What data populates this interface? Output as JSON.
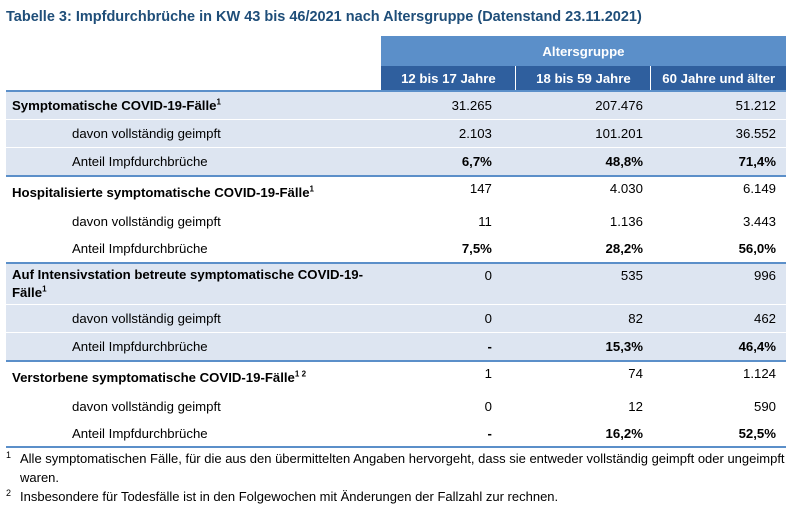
{
  "title": "Tabelle 3: Impfdurchbrüche in KW 43 bis 46/2021 nach Altersgruppe (Datenstand 23.11.2021)",
  "group_header": "Altersgruppe",
  "columns": [
    "12 bis 17 Jahre",
    "18 bis 59 Jahre",
    "60 Jahre und älter"
  ],
  "sections": [
    {
      "label": "Symptomatische COVID-19-Fälle",
      "sup": "1",
      "values": [
        "31.265",
        "207.476",
        "51.212"
      ],
      "vaccinated_label": "davon vollständig geimpft",
      "vaccinated": [
        "2.103",
        "101.201",
        "36.552"
      ],
      "share_label": "Anteil Impfdurchbrüche",
      "share": [
        "6,7%",
        "48,8%",
        "71,4%"
      ]
    },
    {
      "label": "Hospitalisierte symptomatische COVID-19-Fälle",
      "sup": "1",
      "values": [
        "147",
        "4.030",
        "6.149"
      ],
      "vaccinated_label": "davon vollständig geimpft",
      "vaccinated": [
        "11",
        "1.136",
        "3.443"
      ],
      "share_label": "Anteil Impfdurchbrüche",
      "share": [
        "7,5%",
        "28,2%",
        "56,0%"
      ]
    },
    {
      "label": "Auf Intensivstation betreute symptomatische COVID-19-Fälle",
      "sup": "1",
      "values": [
        "0",
        "535",
        "996"
      ],
      "vaccinated_label": "davon vollständig geimpft",
      "vaccinated": [
        "0",
        "82",
        "462"
      ],
      "share_label": "Anteil Impfdurchbrüche",
      "share": [
        "-",
        "15,3%",
        "46,4%"
      ]
    },
    {
      "label": "Verstorbene symptomatische COVID-19-Fälle",
      "sup": "1 2",
      "values": [
        "1",
        "74",
        "1.124"
      ],
      "vaccinated_label": "davon vollständig geimpft",
      "vaccinated": [
        "0",
        "12",
        "590"
      ],
      "share_label": "Anteil Impfdurchbrüche",
      "share": [
        "-",
        "16,2%",
        "52,5%"
      ]
    }
  ],
  "footnotes": [
    {
      "mark": "1",
      "text": "Alle symptomatischen Fälle, für die aus den übermittelten Angaben hervorgeht, dass sie entweder vollständig geimpft oder ungeimpft waren."
    },
    {
      "mark": "2",
      "text": "Insbesondere für Todesfälle ist in den Folgewochen mit Änderungen der Fallzahl zur rechnen."
    }
  ],
  "colors": {
    "title": "#1f4e79",
    "group_header_bg": "#5b8fc9",
    "column_header_bg": "#2f5f9e",
    "row_shade": "#dde5f1"
  }
}
